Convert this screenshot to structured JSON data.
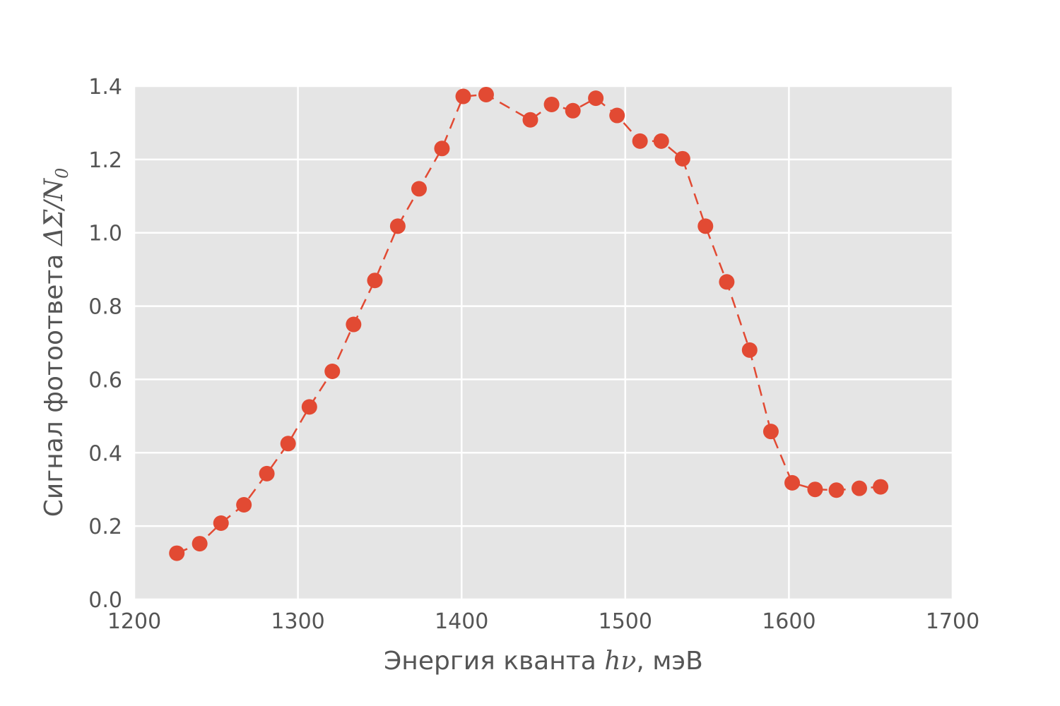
{
  "chart_data": {
    "type": "line",
    "xlabel_parts": [
      "Энергия кванта ",
      "hν",
      ", мэВ"
    ],
    "ylabel_parts": [
      "Сигнал фотоответа ",
      "ΔΣ/N",
      "0"
    ],
    "xlim": [
      1200,
      1700
    ],
    "ylim": [
      0.0,
      1.4
    ],
    "x_ticks": [
      "1200",
      "1300",
      "1400",
      "1500",
      "1600",
      "1700"
    ],
    "y_ticks": [
      "0.0",
      "0.2",
      "0.4",
      "0.6",
      "0.8",
      "1.0",
      "1.2",
      "1.4"
    ],
    "grid": true,
    "colors": {
      "series": "#E24A33",
      "plot_bg": "#E5E5E5",
      "grid": "#FFFFFF",
      "text": "#555555"
    },
    "series": [
      {
        "line_style": "dashed",
        "marker": "circle",
        "points": [
          [
            1226,
            0.126
          ],
          [
            1240,
            0.152
          ],
          [
            1253,
            0.208
          ],
          [
            1267,
            0.258
          ],
          [
            1281,
            0.343
          ],
          [
            1294,
            0.425
          ],
          [
            1307,
            0.525
          ],
          [
            1321,
            0.622
          ],
          [
            1334,
            0.75
          ],
          [
            1347,
            0.87
          ],
          [
            1361,
            1.018
          ],
          [
            1374,
            1.12
          ],
          [
            1388,
            1.23
          ],
          [
            1401,
            1.372
          ],
          [
            1415,
            1.377
          ],
          [
            1442,
            1.308
          ],
          [
            1455,
            1.35
          ],
          [
            1468,
            1.333
          ],
          [
            1482,
            1.367
          ],
          [
            1495,
            1.32
          ],
          [
            1509,
            1.25
          ],
          [
            1522,
            1.25
          ],
          [
            1535,
            1.202
          ],
          [
            1549,
            1.018
          ],
          [
            1562,
            0.866
          ],
          [
            1576,
            0.68
          ],
          [
            1589,
            0.458
          ],
          [
            1602,
            0.318
          ],
          [
            1616,
            0.3
          ],
          [
            1629,
            0.298
          ],
          [
            1643,
            0.303
          ],
          [
            1656,
            0.307
          ]
        ]
      }
    ]
  }
}
